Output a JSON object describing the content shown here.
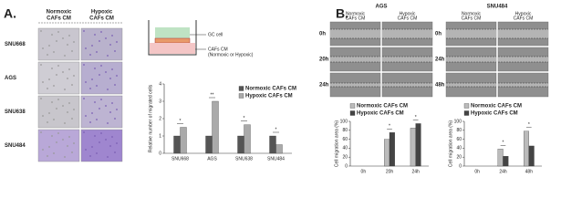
{
  "figure": {
    "panels": [
      "A.",
      "B."
    ],
    "micrograph": {
      "columns": [
        [
          "Normoxic",
          "CAFs CM"
        ],
        [
          "Hypoxic",
          "CAFs CM"
        ]
      ],
      "rows": [
        "SNU668",
        "AGS",
        "SNU638",
        "SNU484"
      ]
    },
    "diagram": {
      "cell_label": "GC cell",
      "medium_label": [
        "CAFs CM",
        "(Normoxic or Hypoxic)"
      ]
    },
    "wound": [
      {
        "title": "AGS",
        "columns": [
          [
            "Normoxic",
            "CAFs CM"
          ],
          [
            "Hypoxic",
            "CAFs CM"
          ]
        ],
        "rows": [
          "0h",
          "20h",
          "24h"
        ]
      },
      {
        "title": "SNU484",
        "columns": [
          [
            "Normoxic",
            "CAFs CM"
          ],
          [
            "Hypoxic",
            "CAFs CM"
          ]
        ],
        "rows": [
          "0h",
          "24h",
          "48h"
        ]
      }
    ]
  },
  "chart_data": [
    {
      "type": "bar",
      "y_label": "Relative number of migrated cells",
      "categories": [
        "SNU668",
        "AGS",
        "SNU638",
        "SNU484"
      ],
      "series": [
        {
          "name": "Normoxic CAFs CM",
          "color": "#555555",
          "values": [
            1,
            1,
            1,
            1
          ]
        },
        {
          "name": "Hypoxic CAFs CM",
          "color": "#aaaaaa",
          "values": [
            1.5,
            3.0,
            1.65,
            0.5
          ]
        }
      ],
      "annotations": [
        "*",
        "**",
        "*",
        "*"
      ],
      "ylim": [
        0,
        4
      ],
      "yticks": [
        0,
        1,
        2,
        3,
        4
      ]
    },
    {
      "type": "bar",
      "y_label": "Cell migration area (%)",
      "categories": [
        "0h",
        "20h",
        "24h"
      ],
      "series": [
        {
          "name": "Normoxic CAFs CM",
          "color": "#bbbbbb",
          "values": [
            0,
            60,
            85
          ]
        },
        {
          "name": "Hypoxic CAFs CM",
          "color": "#444444",
          "values": [
            0,
            75,
            95
          ]
        }
      ],
      "annotations": [
        null,
        "*",
        "*"
      ],
      "ylim": [
        0,
        100
      ],
      "yticks": [
        0,
        20,
        40,
        60,
        80,
        100
      ]
    },
    {
      "type": "bar",
      "y_label": "Cell migration area (%)",
      "categories": [
        "0h",
        "24h",
        "48h"
      ],
      "series": [
        {
          "name": "Normoxic CAFs CM",
          "color": "#bbbbbb",
          "values": [
            0,
            38,
            78
          ]
        },
        {
          "name": "Hypoxic CAFs CM",
          "color": "#444444",
          "values": [
            0,
            22,
            45
          ]
        }
      ],
      "annotations": [
        null,
        "*",
        "*"
      ],
      "ylim": [
        0,
        100
      ],
      "yticks": [
        0,
        20,
        40,
        60,
        80,
        100
      ]
    }
  ]
}
